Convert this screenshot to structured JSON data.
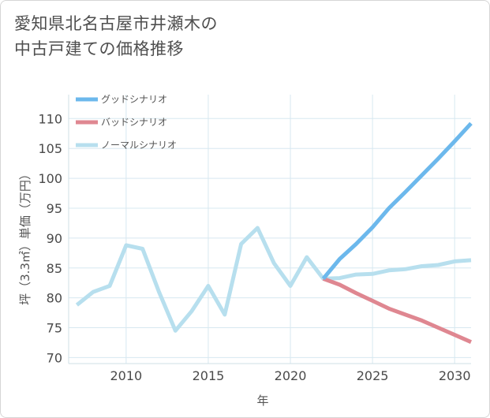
{
  "title_lines": [
    "愛知県北名古屋市井瀬木の",
    "中古戸建ての価格推移"
  ],
  "chart_data": {
    "type": "line",
    "title": "愛知県北名古屋市井瀬木の中古戸建ての価格推移",
    "xlabel": "年",
    "ylabel": "坪（3.3㎡）単価（万円）",
    "xlim": [
      2006.5,
      2031
    ],
    "ylim": [
      69,
      114
    ],
    "xticks": [
      2010,
      2015,
      2020,
      2025,
      2030
    ],
    "yticks": [
      70,
      75,
      80,
      85,
      90,
      95,
      100,
      105,
      110
    ],
    "grid": true,
    "legend_position": "top-left",
    "series": [
      {
        "name": "グッドシナリオ",
        "color": "#6cb8ec",
        "x": [
          2022,
          2023,
          2024,
          2025,
          2026,
          2027,
          2028,
          2029,
          2030,
          2031
        ],
        "y": [
          83.2,
          86.5,
          89.0,
          91.8,
          95.0,
          97.7,
          100.5,
          103.3,
          106.2,
          109.2
        ]
      },
      {
        "name": "バッドシナリオ",
        "color": "#df8791",
        "x": [
          2022,
          2023,
          2024,
          2025,
          2026,
          2027,
          2028,
          2029,
          2030,
          2031
        ],
        "y": [
          83.2,
          82.2,
          80.8,
          79.5,
          78.2,
          77.2,
          76.2,
          75.0,
          73.8,
          72.6
        ]
      },
      {
        "name": "ノーマルシナリオ",
        "color": "#b7dfee",
        "x": [
          2007,
          2008,
          2009,
          2010,
          2011,
          2012,
          2013,
          2014,
          2015,
          2016,
          2017,
          2018,
          2019,
          2020,
          2021,
          2022,
          2023,
          2024,
          2025,
          2026,
          2027,
          2028,
          2029,
          2030,
          2031
        ],
        "y": [
          78.8,
          81.0,
          82.0,
          88.8,
          88.2,
          81.0,
          74.5,
          77.8,
          82.0,
          77.2,
          89.0,
          91.7,
          85.8,
          82.0,
          86.8,
          83.2,
          83.3,
          83.9,
          84.0,
          84.6,
          84.8,
          85.3,
          85.5,
          86.1,
          86.3
        ]
      }
    ]
  }
}
